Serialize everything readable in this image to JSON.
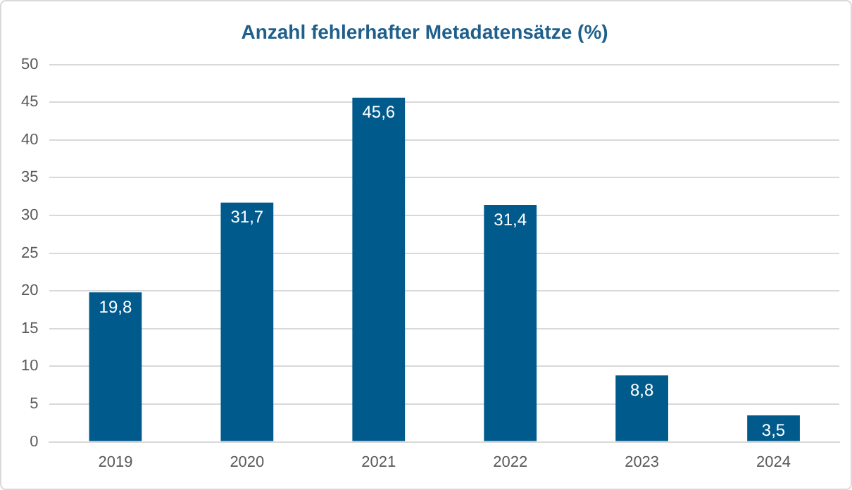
{
  "chart_data": {
    "type": "bar",
    "title": "Anzahl fehlerhafter Metadatensätze (%)",
    "categories": [
      "2019",
      "2020",
      "2021",
      "2022",
      "2023",
      "2024"
    ],
    "values": [
      19.8,
      31.7,
      45.6,
      31.4,
      8.8,
      3.5
    ],
    "value_labels": [
      "19,8",
      "31,7",
      "45,6",
      "31,4",
      "8,8",
      "3,5"
    ],
    "color": "#005a8c",
    "ylim": [
      0,
      50
    ],
    "yticks": [
      0,
      5,
      10,
      15,
      20,
      25,
      30,
      35,
      40,
      45,
      50
    ],
    "grid": "y"
  }
}
